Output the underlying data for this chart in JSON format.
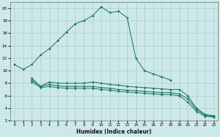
{
  "xlabel": "Humidex (Indice chaleur)",
  "background_color": "#cce8e8",
  "grid_color": "#aacccc",
  "line_color": "#1a7a6e",
  "xlim": [
    -0.5,
    23.5
  ],
  "ylim": [
    2,
    21
  ],
  "xticks": [
    0,
    1,
    2,
    3,
    4,
    5,
    6,
    7,
    8,
    9,
    10,
    11,
    12,
    13,
    14,
    15,
    16,
    17,
    18,
    19,
    20,
    21,
    22,
    23
  ],
  "yticks": [
    2,
    4,
    6,
    8,
    10,
    12,
    14,
    16,
    18,
    20
  ],
  "line1_x": [
    0,
    1,
    2,
    3,
    4,
    5,
    6,
    7,
    8,
    9,
    10,
    11,
    12,
    13,
    14,
    15,
    16,
    17,
    18
  ],
  "line1_y": [
    11.0,
    10.2,
    11.0,
    12.5,
    13.5,
    14.8,
    16.2,
    17.5,
    18.0,
    18.8,
    20.2,
    19.3,
    19.5,
    18.5,
    12.0,
    10.0,
    9.5,
    9.0,
    8.5
  ],
  "line2_x": [
    2,
    3,
    4,
    5,
    6,
    7,
    8,
    9,
    10,
    11,
    12,
    13,
    14,
    15,
    16,
    17,
    18,
    19,
    20,
    21,
    22,
    23
  ],
  "line2_y": [
    8.8,
    7.5,
    8.2,
    8.0,
    8.0,
    8.0,
    8.0,
    8.2,
    8.0,
    7.8,
    7.7,
    7.5,
    7.4,
    7.3,
    7.2,
    7.1,
    7.0,
    7.0,
    6.0,
    4.0,
    3.0,
    2.8
  ],
  "line3_x": [
    2,
    3,
    4,
    5,
    6,
    7,
    8,
    9,
    10,
    11,
    12,
    13,
    14,
    15,
    16,
    17,
    18,
    19,
    20,
    21,
    22,
    23
  ],
  "line3_y": [
    8.5,
    7.5,
    7.8,
    7.6,
    7.5,
    7.5,
    7.5,
    7.5,
    7.3,
    7.2,
    7.0,
    6.9,
    6.8,
    6.7,
    6.6,
    6.5,
    6.5,
    6.3,
    5.5,
    3.8,
    2.9,
    2.7
  ],
  "line4_x": [
    2,
    3,
    4,
    5,
    6,
    7,
    8,
    9,
    10,
    11,
    12,
    13,
    14,
    15,
    16,
    17,
    18,
    19,
    20,
    21,
    22,
    23
  ],
  "line4_y": [
    8.2,
    7.3,
    7.5,
    7.3,
    7.2,
    7.2,
    7.2,
    7.2,
    7.0,
    6.9,
    6.7,
    6.6,
    6.5,
    6.4,
    6.3,
    6.2,
    6.2,
    6.0,
    5.0,
    3.5,
    2.7,
    2.6
  ]
}
